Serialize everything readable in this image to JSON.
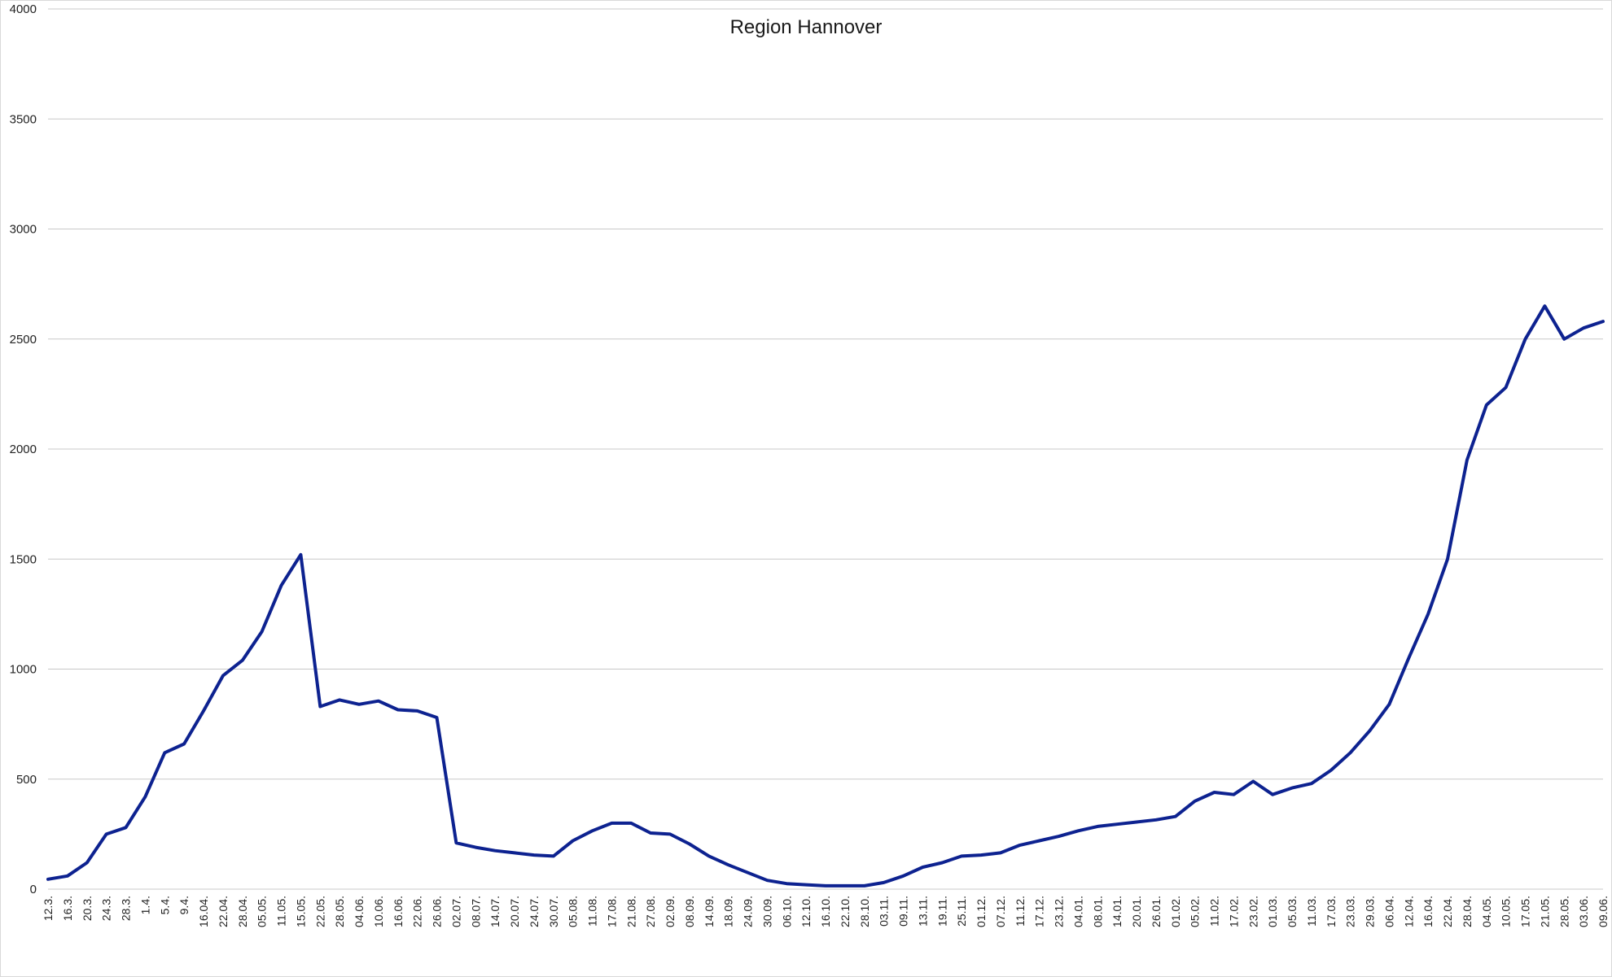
{
  "chart_data": {
    "type": "line",
    "title": "Region Hannover",
    "xlabel": "",
    "ylabel": "",
    "ylim": [
      0,
      4000
    ],
    "yticks": [
      0,
      500,
      1000,
      1500,
      2000,
      2500,
      3000,
      3500,
      4000
    ],
    "grid": "horizontal",
    "legend": "none",
    "line_color": "#0d2290",
    "grid_color": "#c8c8c8",
    "x_tick_labels": [
      "12.3.",
      "16.3.",
      "20.3.",
      "24.3.",
      "28.3.",
      "1.4.",
      "5.4.",
      "9.4.",
      "16.04.",
      "22.04.",
      "28.04.",
      "05.05.",
      "11.05.",
      "15.05.",
      "22.05.",
      "28.05.",
      "04.06.",
      "10.06.",
      "16.06.",
      "22.06.",
      "26.06.",
      "02.07.",
      "08.07.",
      "14.07.",
      "20.07.",
      "24.07.",
      "30.07.",
      "05.08.",
      "11.08.",
      "17.08.",
      "21.08.",
      "27.08.",
      "02.09.",
      "08.09.",
      "14.09.",
      "18.09.",
      "24.09.",
      "30.09.",
      "06.10.",
      "12.10.",
      "16.10.",
      "22.10.",
      "28.10.",
      "03.11.",
      "09.11.",
      "13.11.",
      "19.11.",
      "25.11.",
      "01.12.",
      "07.12.",
      "11.12.",
      "17.12.",
      "23.12.",
      "04.01.",
      "08.01.",
      "14.01.",
      "20.01.",
      "26.01.",
      "01.02.",
      "05.02.",
      "11.02.",
      "17.02.",
      "23.02.",
      "01.03.",
      "05.03.",
      "11.03.",
      "17.03.",
      "23.03.",
      "29.03.",
      "06.04.",
      "12.04.",
      "16.04.",
      "22.04.",
      "28.04.",
      "04.05.",
      "10.05.",
      "17.05.",
      "21.05.",
      "28.05.",
      "03.06.",
      "09.06."
    ],
    "series": [
      {
        "x": [
          0,
          1,
          2,
          3,
          4,
          5,
          6,
          7,
          8,
          9,
          10,
          11,
          12,
          13,
          14,
          15,
          16,
          17,
          18,
          19,
          20,
          21,
          22,
          23,
          24,
          25,
          26,
          27,
          28,
          29,
          30,
          31,
          32,
          33,
          34,
          35,
          36,
          37,
          38,
          39,
          40,
          41,
          42,
          43,
          44,
          45,
          46,
          47,
          48,
          49,
          50,
          51,
          52,
          53,
          54,
          55,
          56,
          57,
          58,
          59,
          60,
          61,
          62,
          63,
          64,
          65,
          66,
          67,
          68,
          69,
          70,
          71,
          72,
          73,
          74,
          75,
          76,
          77,
          78,
          79,
          80
        ],
        "values": [
          45,
          60,
          120,
          250,
          280,
          420,
          620,
          660,
          810,
          970,
          1040,
          1170,
          1380,
          1520,
          830,
          860,
          840,
          855,
          815,
          810,
          780,
          210,
          190,
          175,
          165,
          155,
          150,
          220,
          265,
          300,
          300,
          255,
          250,
          205,
          150,
          110,
          75,
          40,
          25,
          20,
          15,
          15,
          15,
          30,
          60,
          100,
          120,
          150,
          155,
          165,
          200,
          220,
          240,
          265,
          285,
          295,
          305,
          315,
          330,
          400,
          440,
          430,
          490,
          430,
          460,
          480,
          540,
          620,
          720,
          840,
          1050,
          1250,
          1500,
          1950,
          2200,
          2280,
          2500,
          2650,
          2500,
          2550,
          2580
        ]
      }
    ]
  }
}
